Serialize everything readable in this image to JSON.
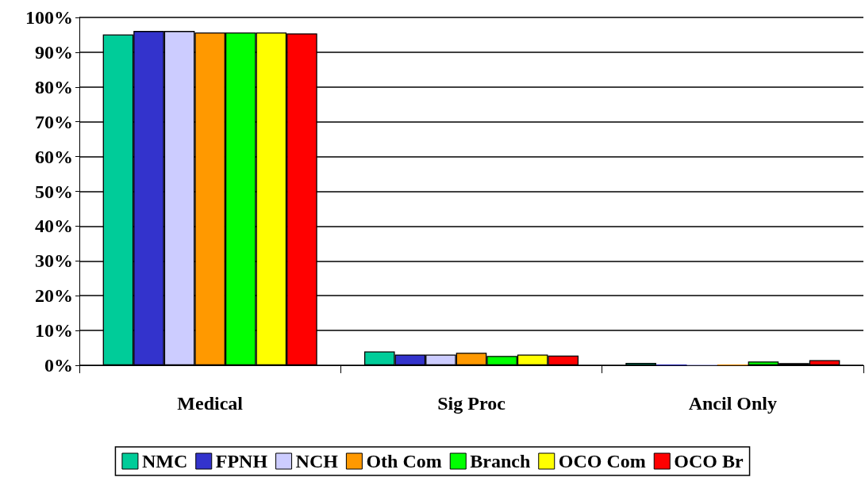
{
  "chart_data": {
    "type": "bar",
    "categories": [
      "Medical",
      "Sig Proc",
      "Ancil Only"
    ],
    "series": [
      {
        "name": "NMC",
        "color": "#00cc99",
        "values": [
          95.1,
          4.0,
          0.7
        ]
      },
      {
        "name": "FPNH",
        "color": "#3333cc",
        "values": [
          96.1,
          3.1,
          0.2
        ]
      },
      {
        "name": "NCH",
        "color": "#ccccff",
        "values": [
          96.1,
          3.1,
          0.2
        ]
      },
      {
        "name": "Oth Com",
        "color": "#ff9900",
        "values": [
          95.7,
          3.6,
          0.2
        ]
      },
      {
        "name": "Branch",
        "color": "#00ff00",
        "values": [
          95.7,
          2.7,
          1.1
        ]
      },
      {
        "name": "OCO Com",
        "color": "#ffff00",
        "values": [
          95.7,
          3.1,
          0.6
        ]
      },
      {
        "name": "OCO Br",
        "color": "#ff0000",
        "values": [
          95.4,
          2.8,
          1.5
        ]
      }
    ],
    "ylim": [
      0,
      100
    ],
    "yticks": [
      {
        "value": 0,
        "label": "0%"
      },
      {
        "value": 10,
        "label": "10%"
      },
      {
        "value": 20,
        "label": "20%"
      },
      {
        "value": 30,
        "label": "30%"
      },
      {
        "value": 40,
        "label": "40%"
      },
      {
        "value": 50,
        "label": "50%"
      },
      {
        "value": 60,
        "label": "60%"
      },
      {
        "value": 70,
        "label": "70%"
      },
      {
        "value": 80,
        "label": "80%"
      },
      {
        "value": 90,
        "label": "90%"
      },
      {
        "value": 100,
        "label": "100%"
      }
    ],
    "grid": "y",
    "legend": "bottom"
  }
}
